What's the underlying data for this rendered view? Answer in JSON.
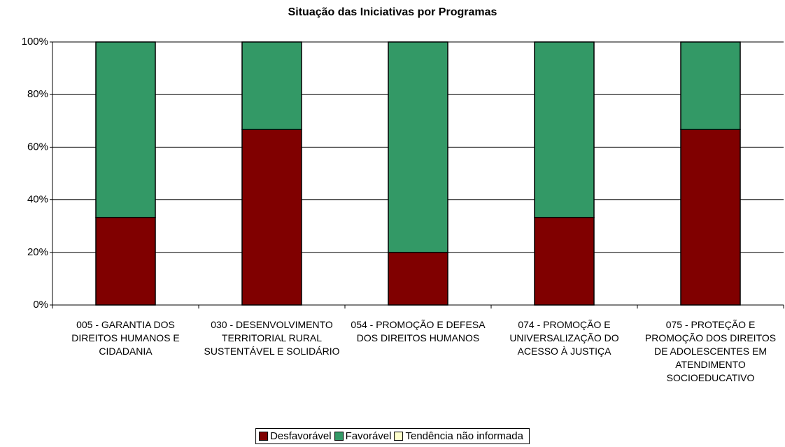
{
  "chart_data": {
    "type": "stacked_bar",
    "title": "Situação das Iniciativas por Programas",
    "categories": [
      "005 - GARANTIA DOS DIREITOS HUMANOS E CIDADANIA",
      "030 - DESENVOLVIMENTO TERRITORIAL RURAL SUSTENTÁVEL E SOLIDÁRIO",
      "054 - PROMOÇÃO E DEFESA DOS DIREITOS HUMANOS",
      "074 - PROMOÇÃO E UNIVERSALIZAÇÃO DO ACESSO À JUSTIÇA",
      "075 - PROTEÇÃO E PROMOÇÃO DOS DIREITOS DE ADOLESCENTES EM ATENDIMENTO SOCIOEDUCATIVO"
    ],
    "series": [
      {
        "name": "Desfavorável",
        "color": "#800000",
        "values": [
          33.3,
          66.7,
          20,
          33.3,
          66.7
        ]
      },
      {
        "name": "Favorável",
        "color": "#339966",
        "values": [
          66.7,
          33.3,
          80,
          66.7,
          33.3
        ]
      },
      {
        "name": "Tendência não informada",
        "color": "#ffffcc",
        "values": [
          0,
          0,
          0,
          0,
          0
        ]
      }
    ],
    "ylim": [
      0,
      100
    ],
    "yticks": [
      {
        "value": 0,
        "label": "0%"
      },
      {
        "value": 20,
        "label": "20%"
      },
      {
        "value": 40,
        "label": "40%"
      },
      {
        "value": 60,
        "label": "60%"
      },
      {
        "value": 80,
        "label": "80%"
      },
      {
        "value": 100,
        "label": "100%"
      }
    ],
    "grid": true,
    "legend": "bottom"
  }
}
